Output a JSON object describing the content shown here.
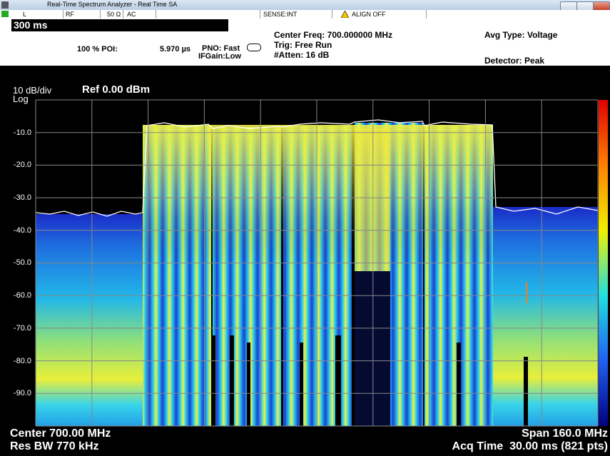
{
  "title_bar": {
    "title": "Real-Time Spectrum Analyzer - Real Time SA"
  },
  "status_bar": {
    "items": [
      "L",
      "RF",
      "50 Ω",
      "AC",
      "SENSE:INT",
      "ALIGN OFF"
    ]
  },
  "settings": {
    "sweep_time": "300 ms",
    "poi_label": "100 % POI:",
    "poi_value": "5.970 µs",
    "pno": "PNO: Fast",
    "ifgain": "IFGain:Low",
    "center_freq": "Center Freq: 700.000000 MHz",
    "trig": "Trig: Free Run",
    "atten": "#Atten: 16 dB",
    "avg_type": "Avg Type: Voltage",
    "detector": "Detector: Peak"
  },
  "display": {
    "scale": "10 dB/div",
    "scale_type": "Log",
    "ref": "Ref 0.00 dBm",
    "y_labels": [
      "-10.0",
      "-20.0",
      "-30.0",
      "-40.0",
      "-50.0",
      "-60.0",
      "-70.0",
      "-80.0",
      "-90.0"
    ]
  },
  "footer": {
    "center": "Center 700.00 MHz",
    "span": "Span 160.0 MHz",
    "res_bw": "Res BW 770 kHz",
    "acq_time": "Acq Time  30.00 ms (821 pts)"
  }
}
